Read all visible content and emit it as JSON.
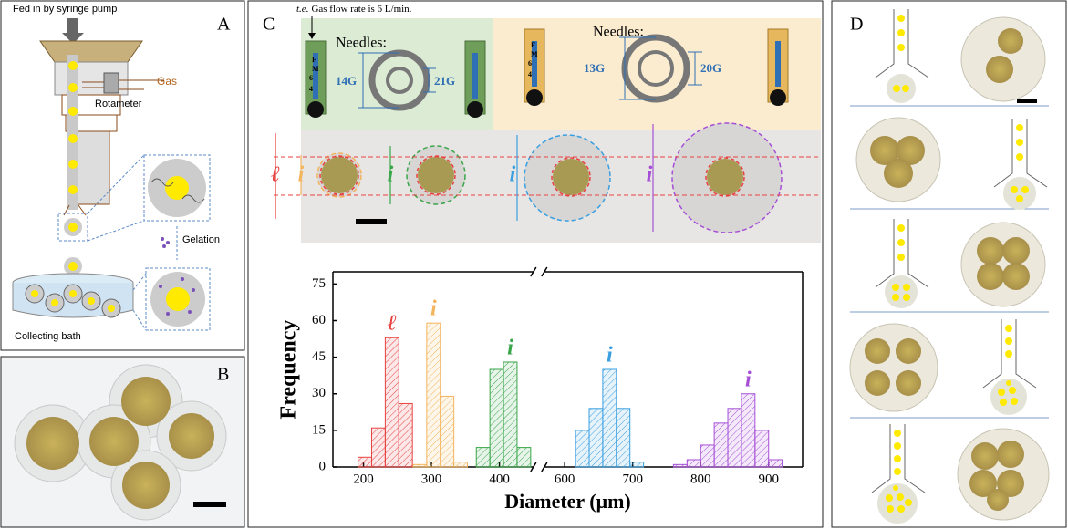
{
  "panel_labels": [
    "A",
    "B",
    "C",
    "D"
  ],
  "panel_a": {
    "feed": "Fed in by syringe pump",
    "gas": "Gas",
    "rotameter": "Rotameter",
    "gelation": "Gelation",
    "bath": "Collecting bath"
  },
  "panel_c": {
    "note_prefix": "t.e.",
    "note": "Gas flow rate is 6 L/min.",
    "needles": "Needles:",
    "gauges": [
      "14G",
      "21G",
      "13G",
      "20G"
    ],
    "meter": [
      "F",
      "M",
      "6",
      "4"
    ],
    "dims": [
      "ℓ",
      "i",
      "i",
      "i",
      "i"
    ]
  },
  "chart_data": {
    "type": "histogram",
    "xlabel": "Diameter (μm)",
    "ylabel": "Frequency",
    "xlim": [
      155,
      950
    ],
    "xbreak": [
      450,
      570
    ],
    "xticks": [
      200,
      300,
      400,
      600,
      700,
      800,
      900
    ],
    "ylim": [
      0,
      80
    ],
    "yticks": [
      0,
      15,
      30,
      45,
      60,
      75
    ],
    "grid": false,
    "series": [
      {
        "name": "ℓ",
        "color": "#e8413f",
        "bins": [
          192,
          212,
          232,
          252,
          272
        ],
        "counts": [
          4,
          16,
          53,
          26
        ]
      },
      {
        "name": "i",
        "color": "#f4b45c",
        "bins": [
          273,
          293,
          313,
          333,
          353
        ],
        "counts": [
          1,
          59,
          29,
          2
        ]
      },
      {
        "name": "i",
        "color": "#3aa64a",
        "bins": [
          366,
          386,
          406,
          426,
          446
        ],
        "counts": [
          8,
          40,
          43,
          8
        ]
      },
      {
        "name": "i",
        "color": "#3a9fe0",
        "bins": [
          616,
          636,
          656,
          676,
          696,
          716
        ],
        "counts": [
          15,
          24,
          40,
          24,
          2
        ]
      },
      {
        "name": "i",
        "color": "#a64fd6",
        "bins": [
          760,
          780,
          800,
          820,
          840,
          860,
          880,
          900,
          920
        ],
        "counts": [
          1,
          3,
          9,
          18,
          24,
          30,
          15,
          3
        ]
      }
    ]
  }
}
